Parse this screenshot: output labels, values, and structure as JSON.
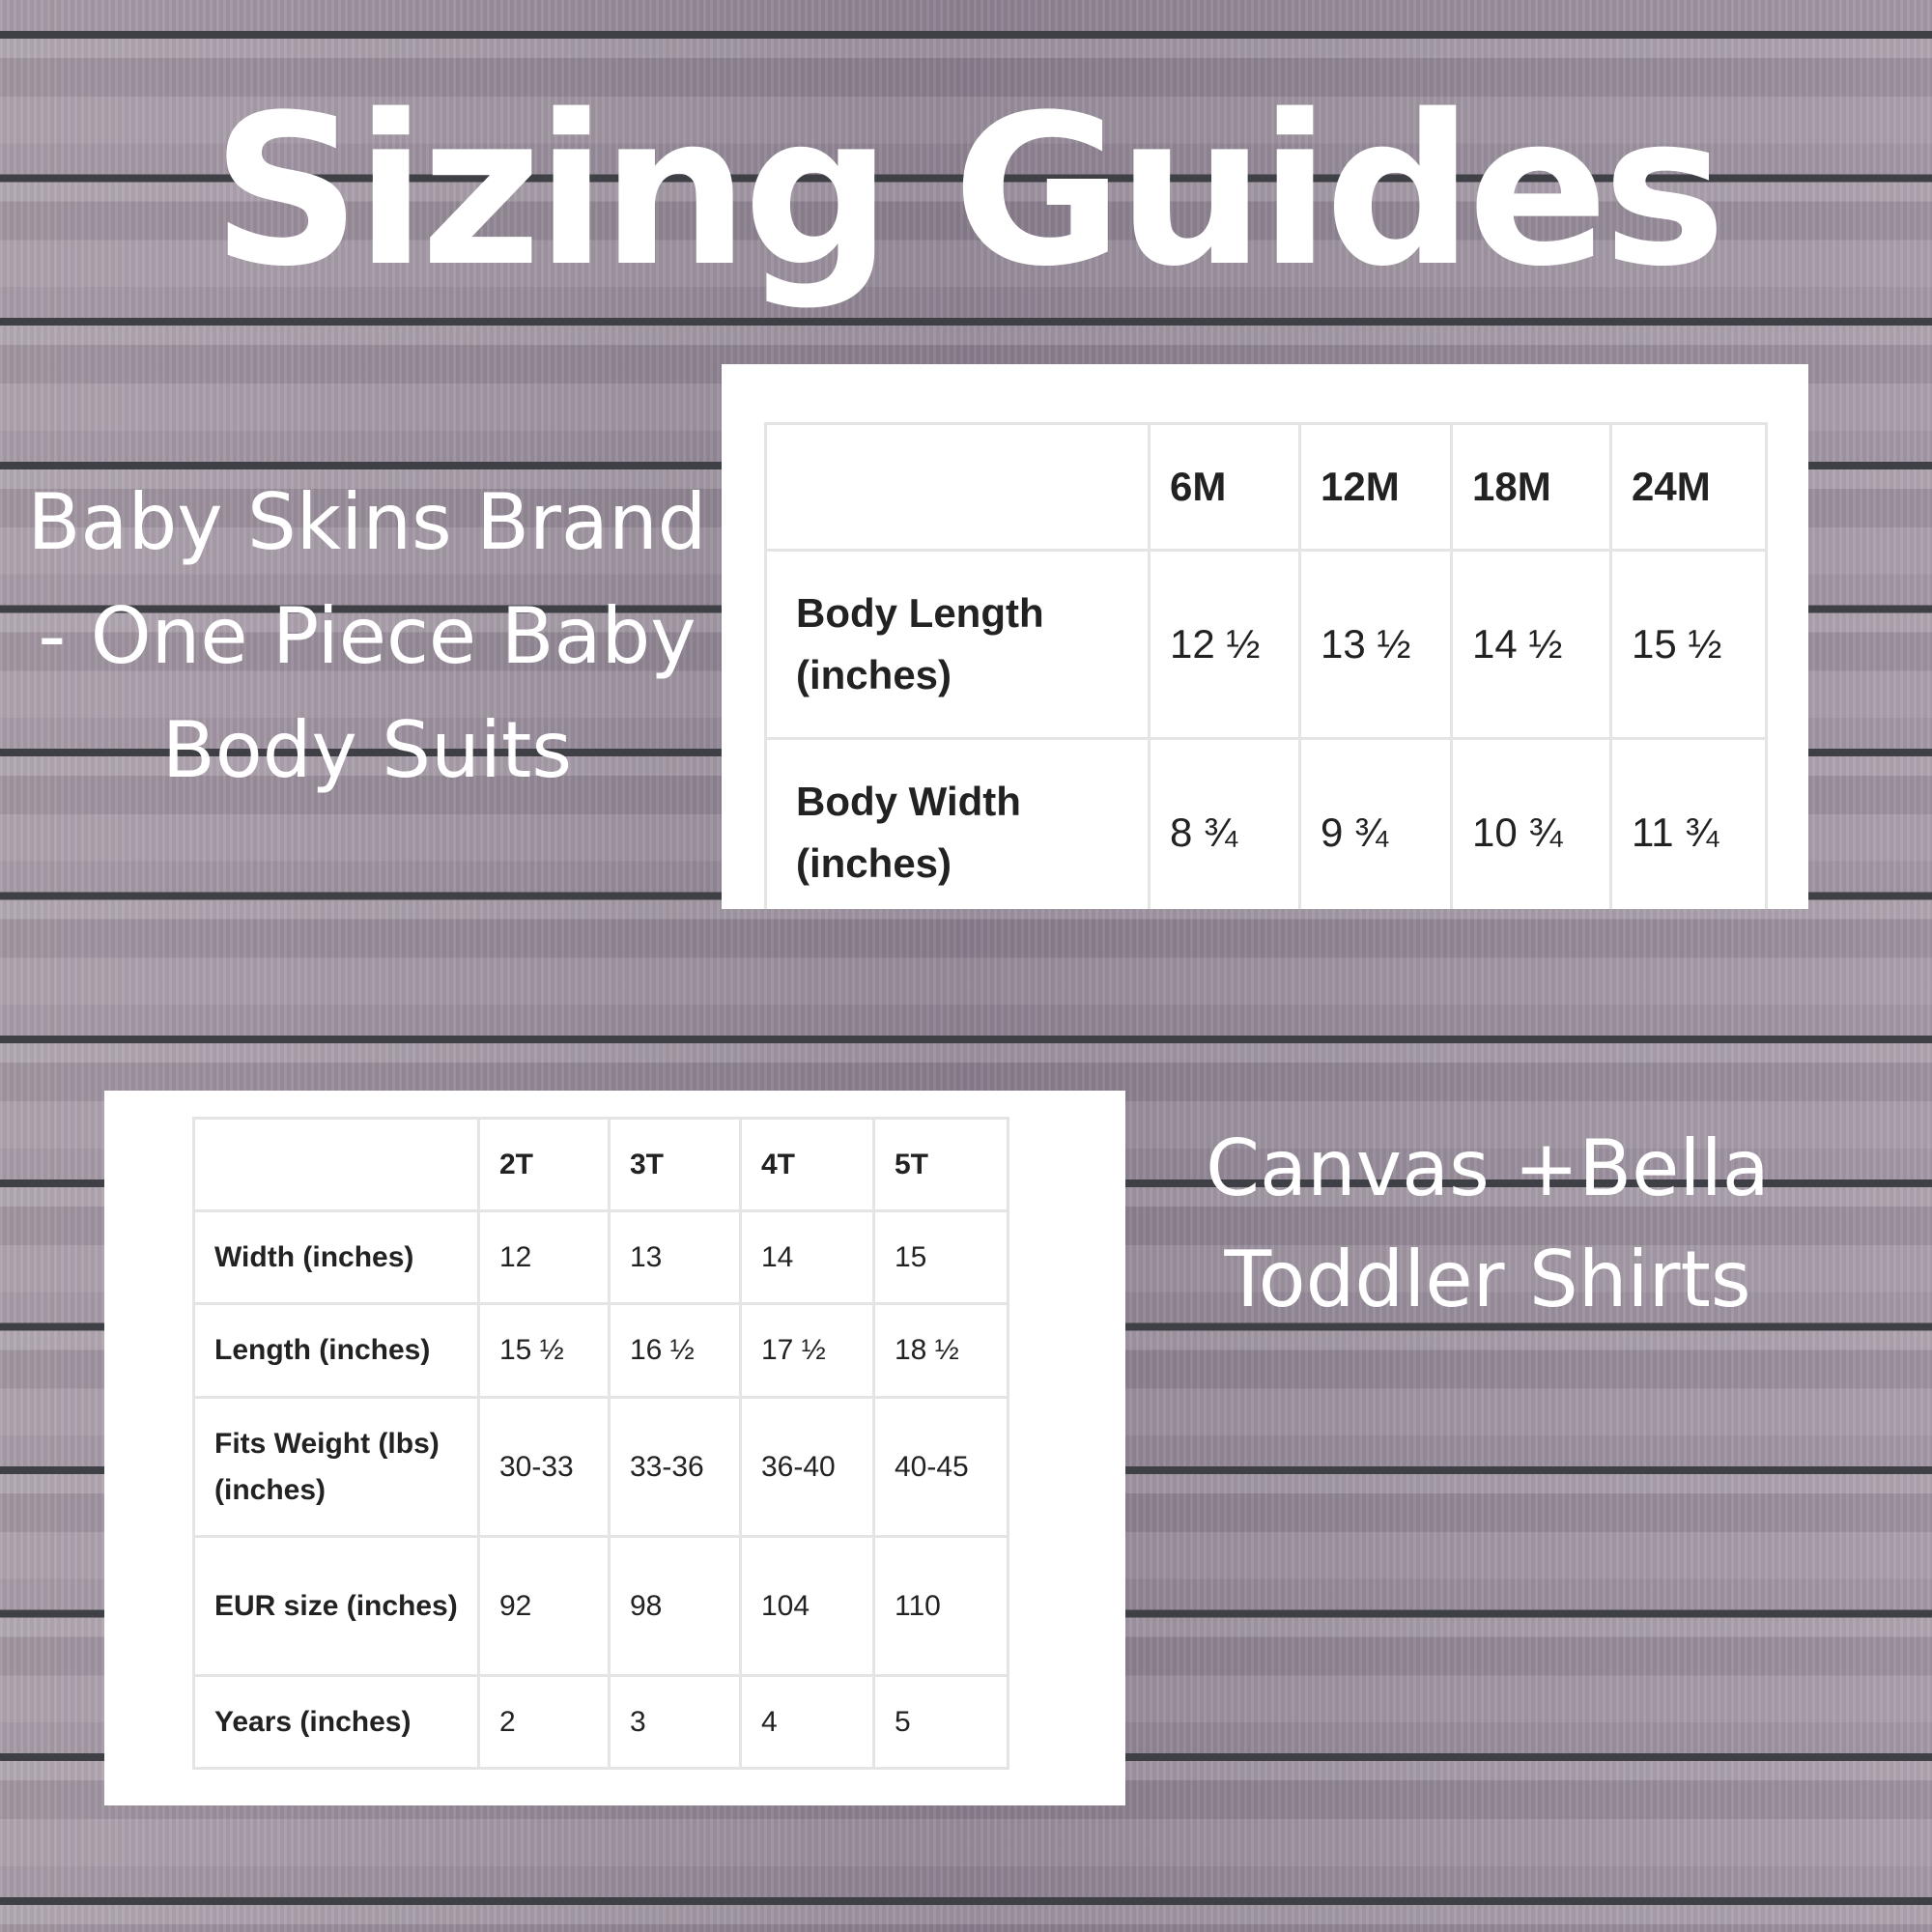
{
  "title": "Sizing Guides",
  "baby_section": {
    "caption": "Baby Skins Brand - One Piece Baby Body Suits",
    "columns": [
      "",
      "6M",
      "12M",
      "18M",
      "24M"
    ],
    "rows": [
      {
        "label": "Body Length (inches)",
        "values": [
          "12 ½",
          "13 ½",
          "14 ½",
          "15 ½"
        ]
      },
      {
        "label": "Body Width (inches)",
        "values": [
          "8 ¾",
          "9 ¾",
          "10 ¾",
          "11 ¾"
        ]
      }
    ]
  },
  "toddler_section": {
    "caption": "Canvas +Bella Toddler Shirts",
    "columns": [
      "",
      "2T",
      "3T",
      "4T",
      "5T"
    ],
    "rows": [
      {
        "label": "Width (inches)",
        "values": [
          "12",
          "13",
          "14",
          "15"
        ]
      },
      {
        "label": "Length (inches)",
        "values": [
          "15 ½",
          "16 ½",
          "17 ½",
          "18 ½"
        ]
      },
      {
        "label": "Fits Weight (lbs) (inches)",
        "values": [
          "30-33",
          "33-36",
          "36-40",
          "40-45"
        ]
      },
      {
        "label": "EUR size (inches)",
        "values": [
          "92",
          "98",
          "104",
          "110"
        ]
      },
      {
        "label": "Years (inches)",
        "values": [
          "2",
          "3",
          "4",
          "5"
        ]
      }
    ]
  }
}
